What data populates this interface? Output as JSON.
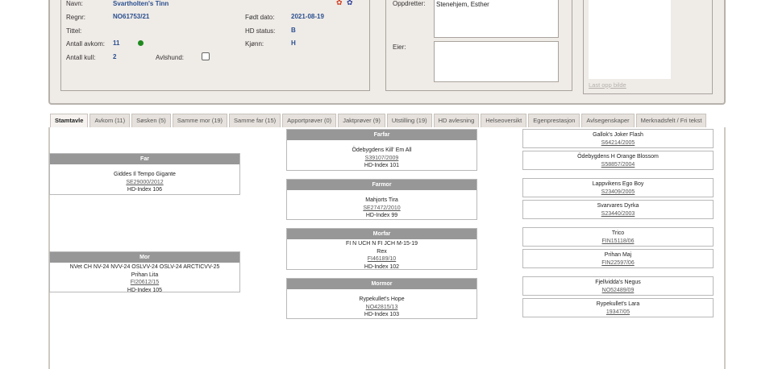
{
  "dog": {
    "name_label": "Navn:",
    "name": "Svartholten's Tinn",
    "regnr_label": "Regnr:",
    "regnr": "NO61753/21",
    "title_label": "Tittel:",
    "offspring_label": "Antall avkom:",
    "offspring": "11",
    "litters_label": "Antall kull:",
    "litters": "2",
    "breeding_dog_label": "Avlshund:",
    "breeding_dog_checked": false,
    "born_label": "Født dato:",
    "born": "2021-08-19",
    "hd_label": "HD status:",
    "hd": "B",
    "sex_label": "Kjønn:",
    "sex": "H",
    "status_color": "#1e8a1e",
    "icons": [
      "rosette-red-icon",
      "rosette-blue-icon"
    ]
  },
  "breeder_label": "Oppdretter:",
  "breeder": "Stenehjem, Esther",
  "owner_label": "Eier:",
  "owner": "",
  "upload_image_link": "Last opp bilde",
  "tabs": [
    "Stamtavle",
    "Avkom (11)",
    "Søsken (5)",
    "Samme mor (19)",
    "Samme far (15)",
    "Apportprøver (0)",
    "Jaktprøver (9)",
    "Utstilling (19)",
    "HD avlesning",
    "Helseoversikt",
    "Egenprestasjon",
    "Avlsegenskaper",
    "Merknadsfelt / Fri tekst"
  ],
  "active_tab": "Stamtavle",
  "pedigree": {
    "far": {
      "header": "Far",
      "title": "",
      "name": "Giddes Il Tempo Gigante",
      "reg": "SE29000/2012",
      "hd": "HD-Index 106"
    },
    "mor": {
      "header": "Mor",
      "title": "NVet CH NV-24 NVV-24 OSLVV-24 OSLV-24 ARCTICVV-25",
      "name": "Prihan Lita",
      "reg": "FI20612/15",
      "hd": "HD-Index 105"
    },
    "farfar": {
      "header": "Farfar",
      "title": "",
      "name": "Ödebygdens Kill' Em All",
      "reg": "S39107/2009",
      "hd": "HD-Index 101"
    },
    "farmor": {
      "header": "Farmor",
      "title": "",
      "name": "Mahjorts Tira",
      "reg": "SE27472/2010",
      "hd": "HD-Index 99"
    },
    "morfar": {
      "header": "Morfar",
      "title": "FI N UCH N FI JCH M-15-19",
      "name": "Rex",
      "reg": "FI46189/10",
      "hd": "HD-Index 102"
    },
    "mormor": {
      "header": "Mormor",
      "title": "",
      "name": "Rypekullet's Hope",
      "reg": "NO42815/13",
      "hd": "HD-Index 103"
    },
    "gen3": [
      {
        "name": "Gallok's Joker Flash",
        "reg": "S64214/2005"
      },
      {
        "name": "Ödebygdens H Orange Blossom",
        "reg": "S58857/2004"
      },
      {
        "name": "Lappvikens Ego Boy",
        "reg": "S23409/2005"
      },
      {
        "name": "Svarvares Dyrka",
        "reg": "S23440/2003"
      },
      {
        "name": "Trico",
        "reg": "FIN15118/06"
      },
      {
        "name": "Prihan Maj",
        "reg": "FIN22597/06"
      },
      {
        "name": "Fjellvidda's Negus",
        "reg": "NO52489/09"
      },
      {
        "name": "Rypekullet's Lara",
        "reg": "19347/05"
      }
    ]
  }
}
